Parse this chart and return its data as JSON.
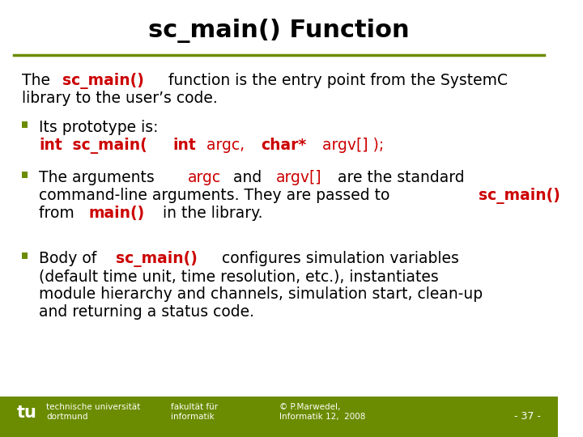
{
  "title": "sc_main() Function",
  "title_fontsize": 22,
  "title_color": "#000000",
  "bg_color": "#ffffff",
  "olive_line_color": "#6b8c00",
  "red_color": "#cc0000",
  "black_color": "#000000",
  "footer_bg_color": "#6b8c00",
  "footer_text_color": "#ffffff",
  "footer_left": "technische universität\ndortmund",
  "footer_mid_left": "fakultät für\ninformatik",
  "footer_mid_right": "© P.Marwedel,\nInformatik 12,  2008",
  "footer_right": "- 37 -",
  "intro_text_parts": [
    {
      "text": "The ",
      "bold": false,
      "color": "#000000"
    },
    {
      "text": "sc_main()",
      "bold": true,
      "color": "#cc0000"
    },
    {
      "text": " function is the entry point from the SystemC\nlibrary to the user’s code.",
      "bold": false,
      "color": "#000000"
    }
  ],
  "bullet1_line1": "Its prototype is:",
  "bullet1_line2_parts": [
    {
      "text": "int",
      "bold": true,
      "color": "#cc0000"
    },
    {
      "text": " sc_main( ",
      "bold": true,
      "color": "#cc0000"
    },
    {
      "text": "int",
      "bold": true,
      "color": "#cc0000"
    },
    {
      "text": " argc, ",
      "bold": false,
      "color": "#cc0000"
    },
    {
      "text": "char*",
      "bold": true,
      "color": "#cc0000"
    },
    {
      "text": " argv[] );",
      "bold": false,
      "color": "#cc0000"
    }
  ],
  "bullet2_parts": [
    {
      "text": "The arguments ",
      "bold": false,
      "color": "#000000"
    },
    {
      "text": "argc",
      "bold": false,
      "color": "#cc0000"
    },
    {
      "text": " and ",
      "bold": false,
      "color": "#000000"
    },
    {
      "text": "argv[]",
      "bold": false,
      "color": "#cc0000"
    },
    {
      "text": " are the standard\ncommand-line arguments. They are passed to ",
      "bold": false,
      "color": "#000000"
    },
    {
      "text": "sc_main()",
      "bold": true,
      "color": "#cc0000"
    },
    {
      "text": "\nfrom ",
      "bold": false,
      "color": "#000000"
    },
    {
      "text": "main()",
      "bold": true,
      "color": "#cc0000"
    },
    {
      "text": " in the library.",
      "bold": false,
      "color": "#000000"
    }
  ],
  "bullet3_parts": [
    {
      "text": "Body of ",
      "bold": false,
      "color": "#000000"
    },
    {
      "text": "sc_main()",
      "bold": true,
      "color": "#cc0000"
    },
    {
      "text": " configures simulation variables\n(default time unit, time resolution, etc.), instantiates\nmodule hierarchy and channels, simulation start, clean-up\nand returning a status code.",
      "bold": false,
      "color": "#000000"
    }
  ]
}
